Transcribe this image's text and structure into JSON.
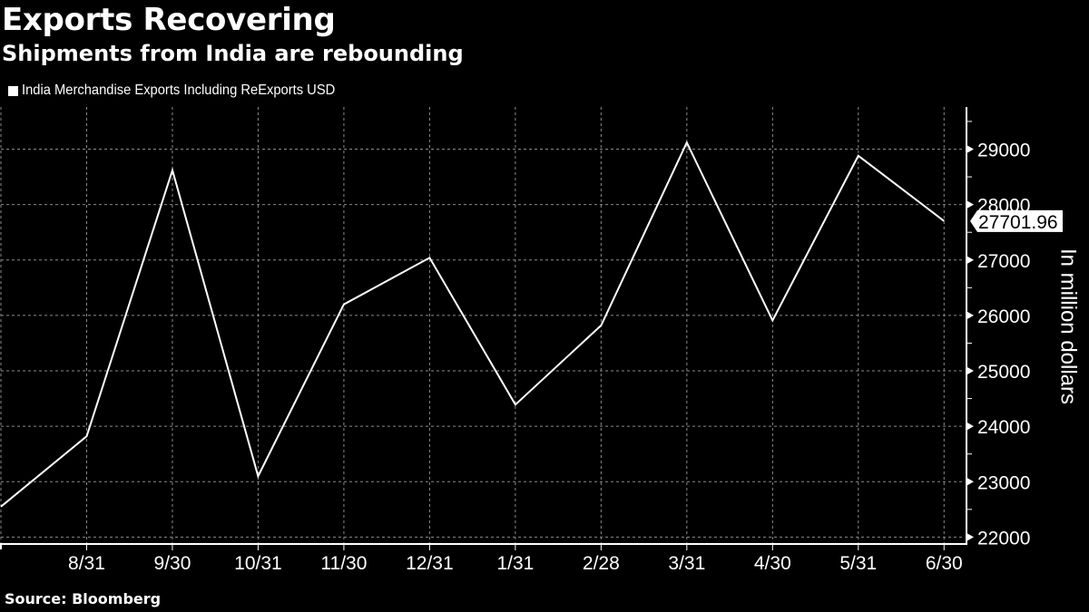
{
  "header": {
    "title": "Exports Recovering",
    "subtitle": "Shipments from India are rebounding"
  },
  "legend": {
    "items": [
      {
        "label": "India Merchandise Exports Including ReExports USD",
        "color": "#ffffff"
      }
    ]
  },
  "footer": {
    "source": "Source: Bloomberg"
  },
  "colors": {
    "background": "#000000",
    "line": "#ffffff",
    "grid": "#8c8c8c",
    "axis": "#ffffff"
  },
  "chart_data": {
    "type": "line",
    "title": "Exports Recovering",
    "subtitle": "Shipments from India are rebounding",
    "xlabel": "",
    "ylabel": "In million dollars",
    "x_tick_labels": [
      "8/31",
      "9/30",
      "10/31",
      "11/30",
      "12/31",
      "1/31",
      "2/28",
      "3/31",
      "4/30",
      "5/31",
      "6/30"
    ],
    "y_tick_labels": [
      "22000",
      "23000",
      "24000",
      "25000",
      "26000",
      "27000",
      "28000",
      "29000"
    ],
    "ylim": [
      21870,
      29800
    ],
    "grid": true,
    "legend_position": "top-left",
    "y_axis_position": "right",
    "last_value_label": "27701.96",
    "series": [
      {
        "name": "India Merchandise Exports Including ReExports USD",
        "color": "#ffffff",
        "x": [
          "7/31",
          "8/31",
          "9/30",
          "10/31",
          "11/30",
          "12/31",
          "1/31",
          "2/28",
          "3/31",
          "4/30",
          "5/31",
          "6/30"
        ],
        "values": [
          22550,
          23820,
          28620,
          23100,
          26200,
          27040,
          24390,
          25820,
          29120,
          25910,
          28880,
          27701.96
        ]
      }
    ]
  }
}
